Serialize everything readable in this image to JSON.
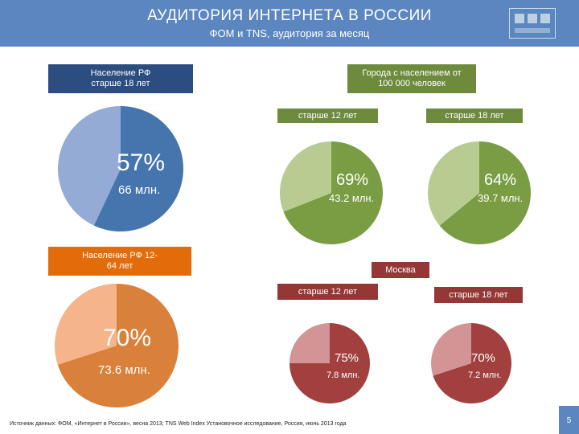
{
  "header": {
    "title": "АУДИТОРИЯ ИНТЕРНЕТА В РОССИИ",
    "subtitle": "ФОМ и TNS, аудитория за месяц"
  },
  "colors": {
    "header_bg": "#5b86bf",
    "navy": "#2b4d80",
    "blue_dark": "#4674ad",
    "blue_light": "#94abd5",
    "orange_label": "#e36c0a",
    "orange_dark": "#d9813a",
    "orange_light": "#f6b48a",
    "green_label": "#6e8b3d",
    "green_dark": "#7a9c43",
    "green_light": "#b8cc92",
    "red_label": "#953735",
    "red_dark": "#a1403f",
    "red_light": "#d29494"
  },
  "labels": {
    "population_18": "Население РФ старше 18 лет",
    "population_12_64": "Население РФ 12-64 лет",
    "cities": "Города с населением от 100 000 человек",
    "cities_12": "старше 12 лет",
    "cities_18": "старше 18 лет",
    "moscow": "Москва",
    "moscow_12": "старше 12 лет",
    "moscow_18": "старше 18 лет"
  },
  "chart_data": [
    {
      "type": "pie",
      "group": "Население РФ старше 18 лет",
      "values": [
        57,
        43
      ],
      "value_label": "57%",
      "sub_label": "66 млн."
    },
    {
      "type": "pie",
      "group": "Население РФ 12-64 лет",
      "values": [
        70,
        30
      ],
      "value_label": "70%",
      "sub_label": "73.6 млн."
    },
    {
      "type": "pie",
      "group": "Города с населением от 100 000 человек — старше 12 лет",
      "values": [
        69,
        31
      ],
      "value_label": "69%",
      "sub_label": "43.2 млн."
    },
    {
      "type": "pie",
      "group": "Города с населением от 100 000 человек — старше 18 лет",
      "values": [
        64,
        36
      ],
      "value_label": "64%",
      "sub_label": "39.7 млн."
    },
    {
      "type": "pie",
      "group": "Москва — старше 12 лет",
      "values": [
        75,
        25
      ],
      "value_label": "75%",
      "sub_label": "7.8 млн."
    },
    {
      "type": "pie",
      "group": "Москва — старше 18 лет",
      "values": [
        70,
        30
      ],
      "value_label": "70%",
      "sub_label": "7.2 млн."
    }
  ],
  "footer": {
    "source": "Источник данных: ФОМ, «Интернет в России», весна 2013; TNS Web Index Установочное исследование, Россия, июнь 2013 года",
    "page": "5"
  }
}
